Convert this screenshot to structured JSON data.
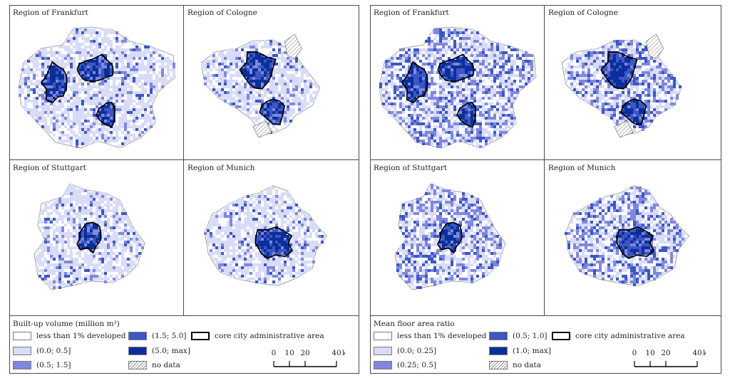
{
  "panels": [
    {
      "maps": [
        {
          "label": "Region of Frankfurt",
          "cores": 3
        },
        {
          "label": "Region of Cologne",
          "cores": 2
        },
        {
          "label": "Region of Stuttgart",
          "cores": 1
        },
        {
          "label": "Region of Munich",
          "cores": 1
        }
      ],
      "legend": {
        "title": "Built-up volume (million m³)",
        "classes": [
          {
            "label": "less than 1% developed",
            "color": "#ffffff"
          },
          {
            "label": "(0.0; 0.5]",
            "color": "#d9dcf6"
          },
          {
            "label": "(0.5; 1.5]",
            "color": "#7f88de"
          },
          {
            "label": "(1.5; 5.0]",
            "color": "#3c57c4"
          },
          {
            "label": "(5.0; max]",
            "color": "#0a2f9a"
          }
        ],
        "core_label": "core city administrative area",
        "nodata_label": "no data",
        "scale": {
          "ticks": [
            "0",
            "10",
            "20",
            "40"
          ],
          "unit": "km"
        }
      }
    },
    {
      "maps": [
        {
          "label": "Region of Frankfurt",
          "cores": 3
        },
        {
          "label": "Region of Cologne",
          "cores": 2
        },
        {
          "label": "Region of Stuttgart",
          "cores": 1
        },
        {
          "label": "Region of Munich",
          "cores": 1
        }
      ],
      "legend": {
        "title": "Mean floor area ratio",
        "classes": [
          {
            "label": "less than 1% developed",
            "color": "#ffffff"
          },
          {
            "label": "(0.0; 0.25]",
            "color": "#d9dcf6"
          },
          {
            "label": "(0.25; 0.5]",
            "color": "#7f88de"
          },
          {
            "label": "(0.5; 1.0]",
            "color": "#3c57c4"
          },
          {
            "label": "(1.0; max]",
            "color": "#0a2f9a"
          }
        ],
        "core_label": "core city administrative area",
        "nodata_label": "no data",
        "scale": {
          "ticks": [
            "0",
            "10",
            "20",
            "40"
          ],
          "unit": "km"
        }
      }
    }
  ]
}
